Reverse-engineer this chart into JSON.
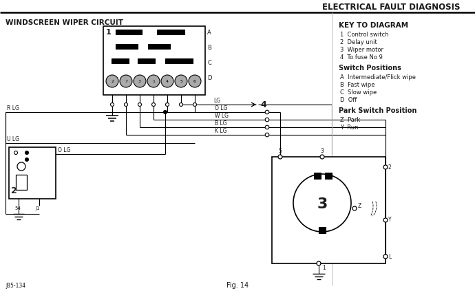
{
  "title": "ELECTRICAL FAULT DIAGNOSIS",
  "subtitle": "WINDSCREEN WIPER CIRCUIT",
  "fig_label": "Fig. 14",
  "fig_ref": "J85-134",
  "key_title": "KEY TO DIAGRAM",
  "key_items": [
    "1  Control switch",
    "2  Delay unit",
    "3  Wiper motor",
    "4  To fuse No 9"
  ],
  "switch_title": "Switch Positions",
  "switch_items": [
    "A  Intermediate/Flick wipe",
    "B  Fast wipe",
    "C  Slow wipe",
    "D  Off"
  ],
  "park_title": "Park Switch Position",
  "park_items": [
    "Z  Park",
    "Y  Run"
  ],
  "side_labels": [
    "A",
    "B",
    "C",
    "D"
  ],
  "connector_nums": [
    "2",
    "7",
    "3",
    "1",
    "4",
    "5",
    "6"
  ],
  "bg_color": "#ffffff",
  "line_color": "#000000",
  "text_color": "#1a1a1a"
}
